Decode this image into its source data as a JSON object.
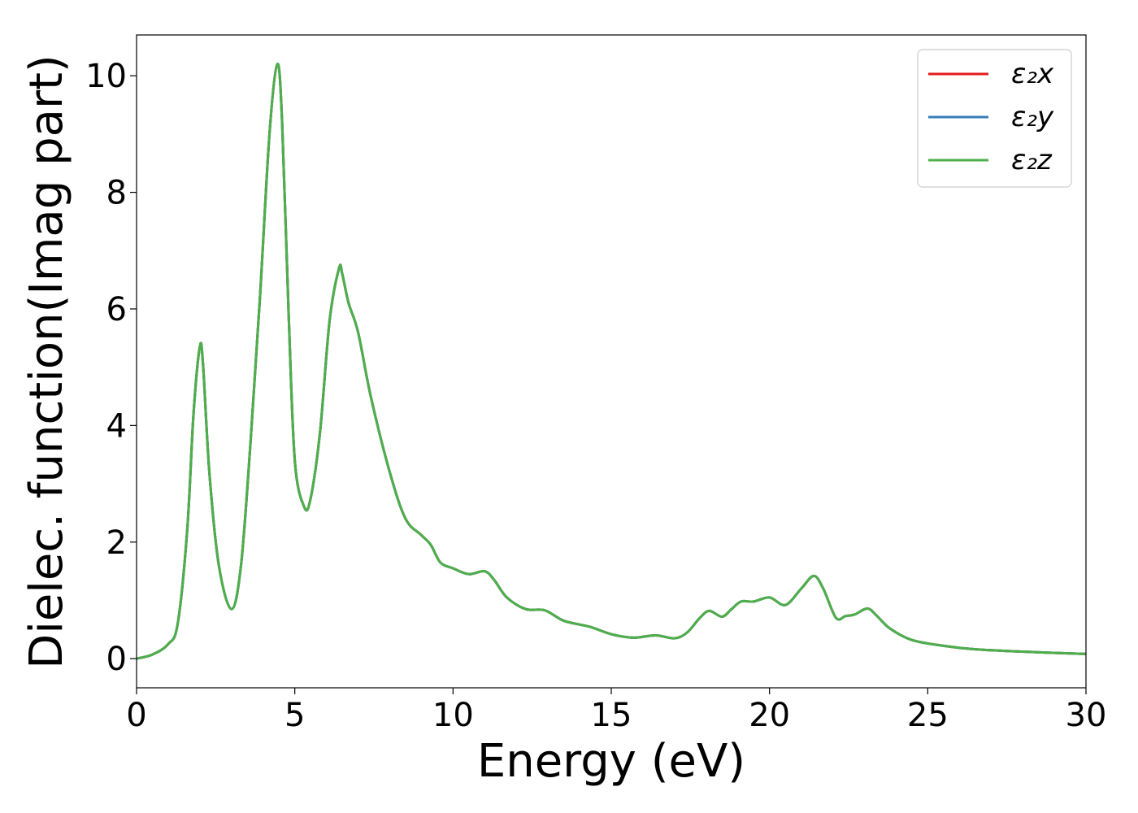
{
  "chart_data": {
    "type": "line",
    "title": "",
    "xlabel": "Energy (eV)",
    "ylabel": "Dielec. function(Imag part)",
    "xlim": [
      0,
      30
    ],
    "ylim": [
      -0.5,
      10.7
    ],
    "xticks": [
      0,
      5,
      10,
      15,
      20,
      25,
      30
    ],
    "xtick_labels": [
      "0",
      "5",
      "10",
      "15",
      "20",
      "25",
      "30"
    ],
    "yticks": [
      0,
      2,
      4,
      6,
      8,
      10
    ],
    "ytick_labels": [
      "0",
      "2",
      "4",
      "6",
      "8",
      "10"
    ],
    "grid": false,
    "legend_position": "top-right",
    "x": [
      0,
      0.5,
      1.0,
      1.3,
      1.6,
      1.8,
      2.0,
      2.1,
      2.3,
      2.6,
      3.0,
      3.3,
      3.6,
      3.9,
      4.2,
      4.45,
      4.6,
      4.8,
      5.0,
      5.3,
      5.5,
      5.8,
      6.1,
      6.4,
      6.5,
      6.7,
      7.0,
      7.4,
      8.0,
      8.5,
      9.0,
      9.3,
      9.6,
      10.0,
      10.5,
      11.0,
      11.3,
      11.7,
      12.3,
      12.9,
      13.5,
      14.3,
      15.0,
      15.7,
      16.4,
      17.0,
      17.4,
      17.8,
      18.1,
      18.5,
      18.8,
      19.1,
      19.5,
      20.0,
      20.5,
      21.0,
      21.4,
      21.7,
      22.1,
      22.4,
      22.7,
      23.1,
      23.4,
      23.8,
      24.5,
      25.5,
      26.5,
      28.0,
      30.0
    ],
    "series": [
      {
        "name": "ε₂x",
        "color": "#e41a1c",
        "values": [
          0.0,
          0.07,
          0.25,
          0.6,
          2.2,
          4.2,
          5.35,
          5.05,
          3.2,
          1.6,
          0.85,
          1.6,
          3.7,
          6.2,
          9.0,
          10.2,
          9.2,
          6.0,
          3.4,
          2.6,
          2.75,
          3.9,
          5.8,
          6.7,
          6.6,
          6.1,
          5.6,
          4.5,
          3.2,
          2.4,
          2.12,
          1.95,
          1.65,
          1.55,
          1.45,
          1.5,
          1.35,
          1.05,
          0.85,
          0.83,
          0.65,
          0.55,
          0.42,
          0.36,
          0.4,
          0.35,
          0.45,
          0.7,
          0.82,
          0.72,
          0.85,
          0.98,
          0.98,
          1.05,
          0.92,
          1.2,
          1.42,
          1.2,
          0.7,
          0.73,
          0.76,
          0.86,
          0.73,
          0.52,
          0.32,
          0.22,
          0.16,
          0.12,
          0.08
        ]
      },
      {
        "name": "ε₂y",
        "color": "#377eb8",
        "values": [
          0.0,
          0.07,
          0.25,
          0.6,
          2.2,
          4.2,
          5.35,
          5.05,
          3.2,
          1.6,
          0.85,
          1.6,
          3.7,
          6.2,
          9.0,
          10.2,
          9.2,
          6.0,
          3.4,
          2.6,
          2.75,
          3.9,
          5.8,
          6.7,
          6.6,
          6.1,
          5.6,
          4.5,
          3.2,
          2.4,
          2.12,
          1.95,
          1.65,
          1.55,
          1.45,
          1.5,
          1.35,
          1.05,
          0.85,
          0.83,
          0.65,
          0.55,
          0.42,
          0.36,
          0.4,
          0.35,
          0.45,
          0.7,
          0.82,
          0.72,
          0.85,
          0.98,
          0.98,
          1.05,
          0.92,
          1.2,
          1.42,
          1.2,
          0.7,
          0.73,
          0.76,
          0.86,
          0.73,
          0.52,
          0.32,
          0.22,
          0.16,
          0.12,
          0.08
        ]
      },
      {
        "name": "ε₂z",
        "color": "#4daf4a",
        "values": [
          0.0,
          0.07,
          0.25,
          0.6,
          2.2,
          4.2,
          5.35,
          5.05,
          3.2,
          1.6,
          0.85,
          1.6,
          3.7,
          6.2,
          9.0,
          10.2,
          9.2,
          6.0,
          3.4,
          2.6,
          2.75,
          3.9,
          5.8,
          6.7,
          6.6,
          6.1,
          5.6,
          4.5,
          3.2,
          2.4,
          2.12,
          1.95,
          1.65,
          1.55,
          1.45,
          1.5,
          1.35,
          1.05,
          0.85,
          0.83,
          0.65,
          0.55,
          0.42,
          0.36,
          0.4,
          0.35,
          0.45,
          0.7,
          0.82,
          0.72,
          0.85,
          0.98,
          0.98,
          1.05,
          0.92,
          1.2,
          1.42,
          1.2,
          0.7,
          0.73,
          0.76,
          0.86,
          0.73,
          0.52,
          0.32,
          0.22,
          0.16,
          0.12,
          0.08
        ]
      }
    ]
  }
}
